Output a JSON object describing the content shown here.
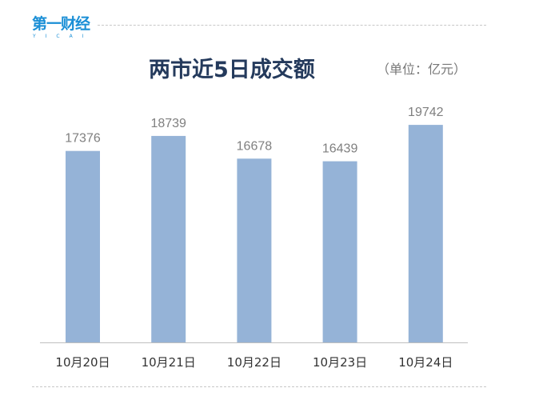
{
  "brand": {
    "logo_text": "第一财经",
    "logo_sub": "YICAI"
  },
  "chart_data": {
    "type": "bar",
    "title": "两市近5日成交额",
    "unit_note": "（单位：亿元）",
    "categories": [
      "10月20日",
      "10月21日",
      "10月22日",
      "10月23日",
      "10月24日"
    ],
    "values": [
      17376,
      18739,
      16678,
      16439,
      19742
    ],
    "ylim": [
      0,
      22000
    ],
    "grid": false,
    "bar_color": "#95b3d7"
  }
}
